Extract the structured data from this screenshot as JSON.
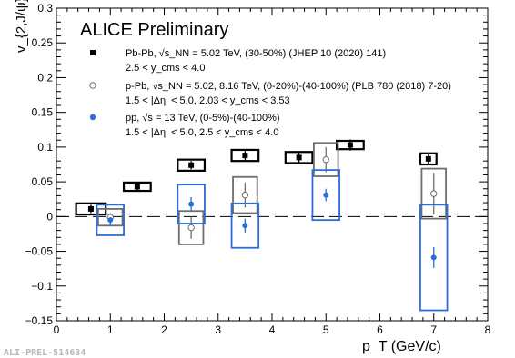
{
  "figure_id": "ALI-PREL-514634",
  "chart_data": {
    "type": "scatter",
    "title": "ALICE Preliminary",
    "xlabel": "p_T (GeV/c)",
    "ylabel": "v_{2,J/ψ}",
    "xlim": [
      0,
      8
    ],
    "ylim": [
      -0.15,
      0.3
    ],
    "x_ticks": [
      "0",
      "1",
      "2",
      "3",
      "4",
      "5",
      "6",
      "7",
      "8"
    ],
    "y_ticks": [
      "−0.15",
      "−0.1",
      "−0.05",
      "0",
      "0.05",
      "0.1",
      "0.15",
      "0.2",
      "0.25",
      "0.3"
    ],
    "reference_line": 0,
    "series": [
      {
        "name": "Pb-Pb, √sNN = 5.02 TeV, (30-50%) (JHEP 10 (2020) 141)",
        "note": "2.5 < y_cms < 4.0",
        "legend_lines": [
          "Pb-Pb, √s_NN = 5.02 TeV, (30-50%) (JHEP 10 (2020) 141)",
          "2.5 < y_cms < 4.0"
        ],
        "color": "#000000",
        "marker": "square-filled",
        "points": [
          {
            "x": 0.64,
            "y": 0.011,
            "err": 0.006,
            "sys_w": 0.55,
            "sys_h": 0.008
          },
          {
            "x": 1.5,
            "y": 0.043,
            "err": 0.005,
            "sys_w": 0.5,
            "sys_h": 0.006
          },
          {
            "x": 2.5,
            "y": 0.074,
            "err": 0.006,
            "sys_w": 0.5,
            "sys_h": 0.008
          },
          {
            "x": 3.5,
            "y": 0.088,
            "err": 0.007,
            "sys_w": 0.5,
            "sys_h": 0.008
          },
          {
            "x": 4.5,
            "y": 0.085,
            "err": 0.007,
            "sys_w": 0.5,
            "sys_h": 0.008
          },
          {
            "x": 5.45,
            "y": 0.103,
            "err": 0.008,
            "sys_w": 0.5,
            "sys_h": 0.006
          },
          {
            "x": 6.9,
            "y": 0.083,
            "err": 0.009,
            "sys_w": 0.3,
            "sys_h": 0.008
          }
        ]
      },
      {
        "name": "p-Pb, √sNN = 5.02, 8.16 TeV, (0-20%)-(40-100%) (PLB 780 (2018) 7-20)",
        "note": "1.5 < |Δη| < 5.0, 2.03 < y_cms < 3.53",
        "legend_lines": [
          "p-Pb, √s_NN = 5.02, 8.16 TeV, (0-20%)-(40-100%) (PLB 780 (2018) 7-20)",
          "1.5 < |Δη| < 5.0, 2.03 < y_cms < 3.53"
        ],
        "color": "#6e6e6e",
        "marker": "circle-open",
        "points": [
          {
            "x": 1.0,
            "y": -0.001,
            "err": 0.006,
            "sys_w": 0.45,
            "sys_h": 0.012
          },
          {
            "x": 2.5,
            "y": -0.016,
            "err": 0.016,
            "sys_w": 0.45,
            "sys_h": 0.024
          },
          {
            "x": 3.5,
            "y": 0.031,
            "err": 0.018,
            "sys_w": 0.45,
            "sys_h": 0.026
          },
          {
            "x": 5.0,
            "y": 0.082,
            "err": 0.018,
            "sys_w": 0.45,
            "sys_h": 0.024
          },
          {
            "x": 7.0,
            "y": 0.033,
            "err": 0.03,
            "sys_w": 0.45,
            "sys_h": 0.036
          }
        ]
      },
      {
        "name": "pp, √s = 13 TeV, (0-5%)-(40-100%)",
        "note": "1.5 < |Δη| < 5.0, 2.5 < y_cms < 4.0",
        "legend_lines": [
          "pp, √s = 13 TeV, (0-5%)-(40-100%)",
          "1.5 < |Δη| < 5.0, 2.5 < y_cms < 4.0"
        ],
        "color": "#2a6ed8",
        "marker": "circle-filled",
        "points": [
          {
            "x": 1.0,
            "y": -0.005,
            "err": 0.009,
            "sys_w": 0.5,
            "sys_h": 0.022
          },
          {
            "x": 2.5,
            "y": 0.018,
            "err": 0.01,
            "sys_w": 0.5,
            "sys_h": 0.028
          },
          {
            "x": 3.5,
            "y": -0.013,
            "err": 0.01,
            "sys_w": 0.5,
            "sys_h": 0.032
          },
          {
            "x": 5.0,
            "y": 0.031,
            "err": 0.009,
            "sys_w": 0.5,
            "sys_h": 0.036
          },
          {
            "x": 7.0,
            "y": -0.059,
            "err": 0.015,
            "sys_w": 0.5,
            "sys_h": 0.076
          }
        ]
      }
    ]
  }
}
